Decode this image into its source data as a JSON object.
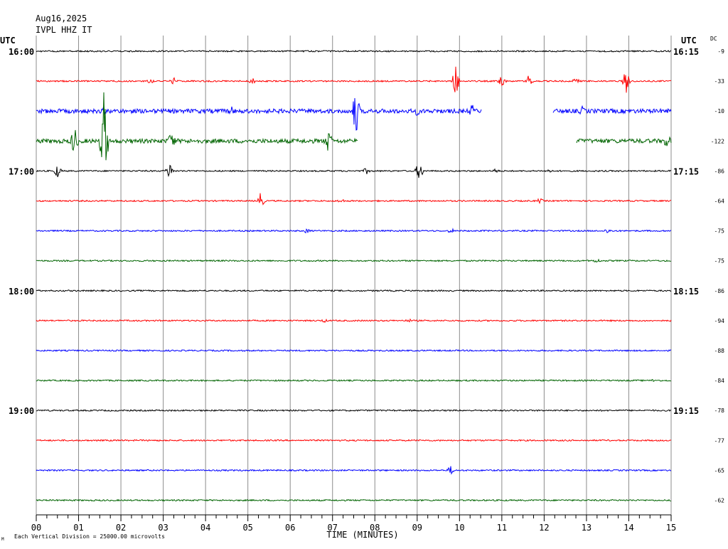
{
  "header": {
    "date": "Aug16,2025",
    "station": "IVPL HHZ IT",
    "utc_left": "UTC",
    "utc_right": "UTC",
    "dc_label": "DC"
  },
  "footer": {
    "scale_note": "Each Vertical Division = 25000.00 microvolts",
    "corner_mark": "M"
  },
  "chart_data": {
    "type": "line",
    "title": "",
    "xlabel": "TIME (MINUTES)",
    "ylabel": "",
    "xlim": [
      0,
      15
    ],
    "x_ticks": [
      "00",
      "01",
      "02",
      "03",
      "04",
      "05",
      "06",
      "07",
      "08",
      "09",
      "10",
      "11",
      "12",
      "13",
      "14",
      "15"
    ],
    "x_minor_ticks_per_minute": 4,
    "grid": "vertical-minute-lines",
    "trace_colors": [
      "#000000",
      "#ff0000",
      "#0000ff",
      "#006400"
    ],
    "left_time_labels": [
      "16:00",
      "17:00",
      "18:00",
      "19:00"
    ],
    "right_time_labels": [
      "16:15",
      "17:15",
      "18:15",
      "19:15"
    ],
    "hour_label_every_n_traces": 4,
    "dc_offsets": [
      "-9",
      "-33",
      "-10",
      "-122",
      "-86",
      "-64",
      "-75",
      "-75",
      "-86",
      "-94",
      "-88",
      "-84",
      "-78",
      "-77",
      "-65",
      "-62"
    ],
    "traces": [
      {
        "amp": 1,
        "gaps": [],
        "events": []
      },
      {
        "amp": 1,
        "gaps": [],
        "events": [
          {
            "t": 2.7,
            "a": 4
          },
          {
            "t": 3.25,
            "a": 6
          },
          {
            "t": 5.1,
            "a": 5
          },
          {
            "t": 9.9,
            "a": 24
          },
          {
            "t": 11.0,
            "a": 12
          },
          {
            "t": 11.65,
            "a": 10
          },
          {
            "t": 12.75,
            "a": 5
          },
          {
            "t": 13.95,
            "a": 20
          }
        ]
      },
      {
        "amp": 3,
        "gaps": [
          [
            10.52,
            12.2
          ]
        ],
        "events": [
          {
            "t": 1.6,
            "a": 6
          },
          {
            "t": 4.6,
            "a": 8
          },
          {
            "t": 7.55,
            "a": 34
          },
          {
            "t": 9.0,
            "a": 7
          },
          {
            "t": 10.3,
            "a": 10
          },
          {
            "t": 12.9,
            "a": 7
          }
        ]
      },
      {
        "amp": 3,
        "gaps": [
          [
            7.6,
            9.0
          ],
          [
            9.0,
            12.25
          ],
          [
            12.25,
            12.75
          ]
        ],
        "events": [
          {
            "t": 0.9,
            "a": 22
          },
          {
            "t": 1.6,
            "a": 78
          },
          {
            "t": 3.2,
            "a": 16
          },
          {
            "t": 6.9,
            "a": 18
          },
          {
            "t": 14.9,
            "a": 12
          }
        ]
      },
      {
        "amp": 1,
        "gaps": [],
        "events": [
          {
            "t": 0.5,
            "a": 10
          },
          {
            "t": 3.15,
            "a": 12
          },
          {
            "t": 7.8,
            "a": 5
          },
          {
            "t": 9.05,
            "a": 14
          },
          {
            "t": 10.85,
            "a": 4
          },
          {
            "t": 12.1,
            "a": 4
          }
        ]
      },
      {
        "amp": 1,
        "gaps": [],
        "events": [
          {
            "t": 5.3,
            "a": 12
          },
          {
            "t": 7.2,
            "a": 4
          },
          {
            "t": 11.9,
            "a": 4
          }
        ]
      },
      {
        "amp": 1,
        "gaps": [],
        "events": [
          {
            "t": 6.4,
            "a": 4
          },
          {
            "t": 9.8,
            "a": 4
          },
          {
            "t": 13.5,
            "a": 4
          }
        ]
      },
      {
        "amp": 1,
        "gaps": [],
        "events": [
          {
            "t": 13.25,
            "a": 4
          }
        ]
      },
      {
        "amp": 1,
        "gaps": [],
        "events": []
      },
      {
        "amp": 1,
        "gaps": [],
        "events": [
          {
            "t": 6.8,
            "a": 3
          },
          {
            "t": 8.8,
            "a": 3
          }
        ]
      },
      {
        "amp": 1,
        "gaps": [],
        "events": []
      },
      {
        "amp": 1,
        "gaps": [],
        "events": [
          {
            "t": 14.6,
            "a": 3
          }
        ]
      },
      {
        "amp": 1,
        "gaps": [],
        "events": []
      },
      {
        "amp": 1,
        "gaps": [],
        "events": []
      },
      {
        "amp": 1,
        "gaps": [],
        "events": [
          {
            "t": 9.8,
            "a": 7
          }
        ]
      },
      {
        "amp": 1,
        "gaps": [],
        "events": []
      }
    ]
  }
}
